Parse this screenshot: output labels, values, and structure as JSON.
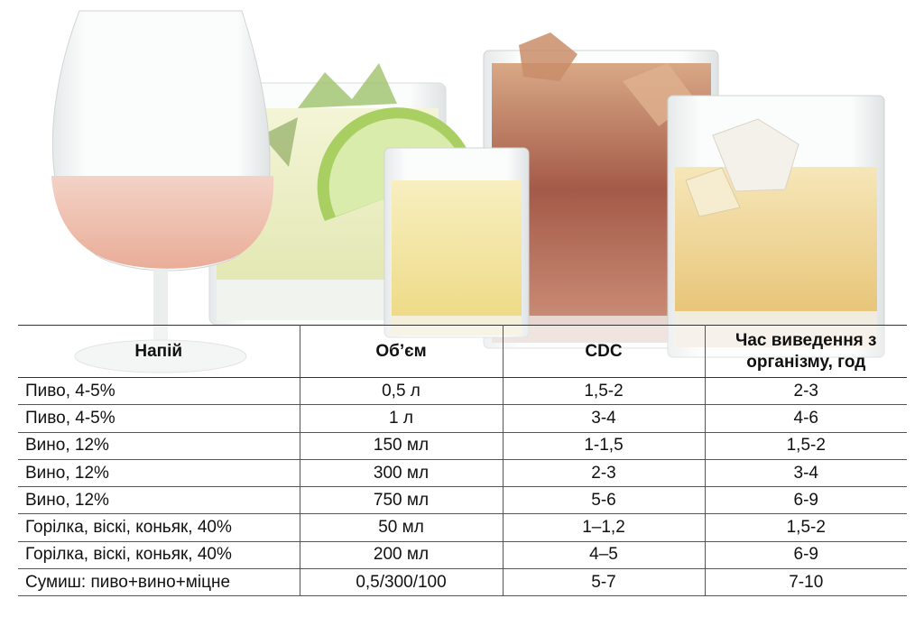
{
  "table": {
    "headers": [
      "Напій",
      "Об’єм",
      "CDC",
      "Час виведення з організму, год"
    ],
    "rows": [
      {
        "drink": "Пиво, 4-5%",
        "volume": "0,5 л",
        "cdc": "1,5-2",
        "time": "2-3"
      },
      {
        "drink": "Пиво, 4-5%",
        "volume": "1 л",
        "cdc": "3-4",
        "time": "4-6"
      },
      {
        "drink": "Вино, 12%",
        "volume": "150 мл",
        "cdc": "1-1,5",
        "time": "1,5-2"
      },
      {
        "drink": "Вино, 12%",
        "volume": "300 мл",
        "cdc": "2-3",
        "time": "3-4"
      },
      {
        "drink": "Вино, 12%",
        "volume": "750 мл",
        "cdc": "5-6",
        "time": "6-9"
      },
      {
        "drink": "Горілка, віскі, коньяк, 40%",
        "volume": "50 мл",
        "cdc": "1–1,2",
        "time": "1,5-2"
      },
      {
        "drink": "Горілка, віскі, коньяк, 40%",
        "volume": "200 мл",
        "cdc": "4–5",
        "time": "6-9"
      },
      {
        "drink": "Сумиш: пиво+вино+міцне",
        "volume": "0,5/300/100",
        "cdc": "5-7",
        "time": "7-10"
      }
    ]
  },
  "colors": {
    "rose_liquid": "#f0c2b0",
    "mojito_liquid": "#eef0c4",
    "lime": "#b8d87a",
    "shot_liquid": "#f2e49a",
    "cola_liquid": "#b6705a",
    "whisky_liquid": "#efd390"
  }
}
